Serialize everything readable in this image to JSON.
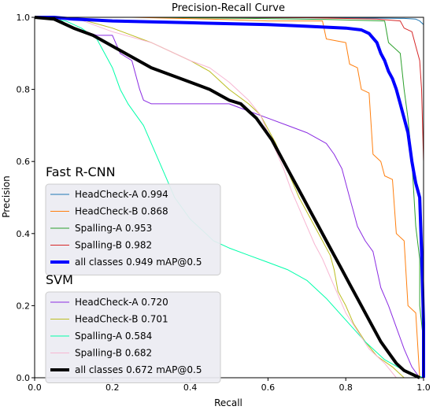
{
  "chart_data": {
    "type": "line",
    "title": "Precision-Recall Curve",
    "xlabel": "Recall",
    "ylabel": "Precision",
    "xlim": [
      0.0,
      1.0
    ],
    "ylim": [
      0.0,
      1.0
    ],
    "xticks": [
      "0.0",
      "0.2",
      "0.4",
      "0.6",
      "0.8",
      "1.0"
    ],
    "yticks": [
      "0.0",
      "0.2",
      "0.4",
      "0.6",
      "0.8",
      "1.0"
    ],
    "grid": false,
    "legend_groups": [
      {
        "title": "Fast R-CNN",
        "placement": "middle-left",
        "series": [
          {
            "name": "HeadCheck-A 0.994",
            "color": "#1f77b4",
            "width": 1,
            "points": [
              [
                0,
                1
              ],
              [
                0.3,
                1
              ],
              [
                0.6,
                0.999
              ],
              [
                0.85,
                0.998
              ],
              [
                0.95,
                0.997
              ],
              [
                0.98,
                0.995
              ],
              [
                0.99,
                0.99
              ],
              [
                1.0,
                0.98
              ],
              [
                1.0,
                0.0
              ]
            ]
          },
          {
            "name": "HeadCheck-B 0.868",
            "color": "#ff7f0e",
            "width": 1,
            "points": [
              [
                0,
                1
              ],
              [
                0.25,
                1
              ],
              [
                0.45,
                0.995
              ],
              [
                0.6,
                0.99
              ],
              [
                0.74,
                0.99
              ],
              [
                0.75,
                0.94
              ],
              [
                0.8,
                0.93
              ],
              [
                0.81,
                0.87
              ],
              [
                0.83,
                0.86
              ],
              [
                0.84,
                0.8
              ],
              [
                0.86,
                0.79
              ],
              [
                0.87,
                0.62
              ],
              [
                0.89,
                0.6
              ],
              [
                0.9,
                0.56
              ],
              [
                0.92,
                0.55
              ],
              [
                0.93,
                0.4
              ],
              [
                0.95,
                0.38
              ],
              [
                0.96,
                0.2
              ],
              [
                0.98,
                0.18
              ],
              [
                0.99,
                0.0
              ]
            ]
          },
          {
            "name": "Spalling-A 0.953",
            "color": "#2ca02c",
            "width": 1,
            "points": [
              [
                0,
                1
              ],
              [
                0.3,
                1
              ],
              [
                0.55,
                0.997
              ],
              [
                0.75,
                0.994
              ],
              [
                0.9,
                0.99
              ],
              [
                0.91,
                0.93
              ],
              [
                0.94,
                0.9
              ],
              [
                0.95,
                0.8
              ],
              [
                0.96,
                0.72
              ],
              [
                0.97,
                0.6
              ],
              [
                0.98,
                0.42
              ],
              [
                0.99,
                0.33
              ],
              [
                0.99,
                0.2
              ],
              [
                1.0,
                0.1
              ],
              [
                1.0,
                0.0
              ]
            ]
          },
          {
            "name": "Spalling-B 0.982",
            "color": "#d62728",
            "width": 1,
            "points": [
              [
                0,
                1
              ],
              [
                0.4,
                1
              ],
              [
                0.7,
                0.999
              ],
              [
                0.88,
                0.995
              ],
              [
                0.94,
                0.99
              ],
              [
                0.95,
                0.97
              ],
              [
                0.97,
                0.96
              ],
              [
                0.98,
                0.92
              ],
              [
                0.99,
                0.88
              ],
              [
                0.995,
                0.8
              ],
              [
                1.0,
                0.6
              ],
              [
                1.0,
                0.0
              ]
            ]
          },
          {
            "name": "all classes 0.949 mAP@0.5",
            "color": "#0000ff",
            "width": 4,
            "points": [
              [
                0,
                1
              ],
              [
                0.05,
                1
              ],
              [
                0.1,
                0.995
              ],
              [
                0.2,
                0.99
              ],
              [
                0.4,
                0.985
              ],
              [
                0.6,
                0.98
              ],
              [
                0.7,
                0.975
              ],
              [
                0.8,
                0.97
              ],
              [
                0.84,
                0.965
              ],
              [
                0.86,
                0.955
              ],
              [
                0.88,
                0.93
              ],
              [
                0.89,
                0.9
              ],
              [
                0.9,
                0.88
              ],
              [
                0.91,
                0.85
              ],
              [
                0.92,
                0.83
              ],
              [
                0.93,
                0.8
              ],
              [
                0.94,
                0.76
              ],
              [
                0.95,
                0.72
              ],
              [
                0.96,
                0.68
              ],
              [
                0.965,
                0.64
              ],
              [
                0.97,
                0.6
              ],
              [
                0.975,
                0.57
              ],
              [
                0.98,
                0.54
              ],
              [
                0.985,
                0.52
              ],
              [
                0.99,
                0.5
              ],
              [
                0.995,
                0.35
              ],
              [
                1.0,
                0.15
              ],
              [
                1.0,
                0.0
              ]
            ]
          }
        ]
      },
      {
        "title": "SVM",
        "placement": "lower-left",
        "series": [
          {
            "name": "HeadCheck-A 0.720",
            "color": "#8a2be2",
            "width": 1,
            "points": [
              [
                0,
                1
              ],
              [
                0.06,
                1
              ],
              [
                0.08,
                0.98
              ],
              [
                0.1,
                0.97
              ],
              [
                0.16,
                0.95
              ],
              [
                0.2,
                0.95
              ],
              [
                0.22,
                0.9
              ],
              [
                0.25,
                0.88
              ],
              [
                0.27,
                0.8
              ],
              [
                0.28,
                0.77
              ],
              [
                0.3,
                0.76
              ],
              [
                0.5,
                0.76
              ],
              [
                0.55,
                0.74
              ],
              [
                0.6,
                0.72
              ],
              [
                0.65,
                0.7
              ],
              [
                0.7,
                0.68
              ],
              [
                0.75,
                0.65
              ],
              [
                0.77,
                0.62
              ],
              [
                0.79,
                0.58
              ],
              [
                0.8,
                0.54
              ],
              [
                0.81,
                0.5
              ],
              [
                0.82,
                0.46
              ],
              [
                0.83,
                0.42
              ],
              [
                0.85,
                0.38
              ],
              [
                0.87,
                0.35
              ],
              [
                0.88,
                0.3
              ],
              [
                0.89,
                0.25
              ],
              [
                0.91,
                0.2
              ],
              [
                0.93,
                0.14
              ],
              [
                0.95,
                0.08
              ],
              [
                0.97,
                0.03
              ],
              [
                0.99,
                0.0
              ]
            ]
          },
          {
            "name": "HeadCheck-B 0.701",
            "color": "#bcbd22",
            "width": 1,
            "points": [
              [
                0,
                1
              ],
              [
                0.1,
                1
              ],
              [
                0.2,
                0.97
              ],
              [
                0.3,
                0.93
              ],
              [
                0.4,
                0.88
              ],
              [
                0.45,
                0.85
              ],
              [
                0.5,
                0.8
              ],
              [
                0.55,
                0.76
              ],
              [
                0.58,
                0.73
              ],
              [
                0.6,
                0.69
              ],
              [
                0.62,
                0.65
              ],
              [
                0.64,
                0.6
              ],
              [
                0.66,
                0.55
              ],
              [
                0.68,
                0.5
              ],
              [
                0.7,
                0.46
              ],
              [
                0.72,
                0.42
              ],
              [
                0.74,
                0.38
              ],
              [
                0.76,
                0.34
              ],
              [
                0.77,
                0.3
              ],
              [
                0.78,
                0.24
              ],
              [
                0.8,
                0.2
              ],
              [
                0.82,
                0.15
              ],
              [
                0.85,
                0.1
              ],
              [
                0.88,
                0.06
              ],
              [
                0.92,
                0.03
              ],
              [
                0.95,
                0.0
              ]
            ]
          },
          {
            "name": "Spalling-A 0.584",
            "color": "#00ffaa",
            "width": 1,
            "points": [
              [
                0,
                1
              ],
              [
                0.08,
                0.99
              ],
              [
                0.12,
                0.97
              ],
              [
                0.16,
                0.94
              ],
              [
                0.18,
                0.9
              ],
              [
                0.2,
                0.86
              ],
              [
                0.22,
                0.8
              ],
              [
                0.24,
                0.76
              ],
              [
                0.26,
                0.73
              ],
              [
                0.28,
                0.7
              ],
              [
                0.3,
                0.65
              ],
              [
                0.32,
                0.6
              ],
              [
                0.34,
                0.55
              ],
              [
                0.36,
                0.5
              ],
              [
                0.38,
                0.47
              ],
              [
                0.4,
                0.44
              ],
              [
                0.42,
                0.42
              ],
              [
                0.44,
                0.4
              ],
              [
                0.46,
                0.38
              ],
              [
                0.5,
                0.36
              ],
              [
                0.55,
                0.34
              ],
              [
                0.6,
                0.32
              ],
              [
                0.65,
                0.3
              ],
              [
                0.7,
                0.27
              ],
              [
                0.75,
                0.22
              ],
              [
                0.8,
                0.16
              ],
              [
                0.85,
                0.1
              ],
              [
                0.9,
                0.05
              ],
              [
                0.95,
                0.02
              ],
              [
                1.0,
                0.0
              ]
            ]
          },
          {
            "name": "Spalling-B 0.682",
            "color": "#f7b6d2",
            "width": 1,
            "points": [
              [
                0,
                1
              ],
              [
                0.1,
                1
              ],
              [
                0.15,
                0.98
              ],
              [
                0.2,
                0.96
              ],
              [
                0.3,
                0.93
              ],
              [
                0.4,
                0.88
              ],
              [
                0.45,
                0.86
              ],
              [
                0.5,
                0.82
              ],
              [
                0.55,
                0.77
              ],
              [
                0.58,
                0.73
              ],
              [
                0.6,
                0.68
              ],
              [
                0.62,
                0.63
              ],
              [
                0.64,
                0.58
              ],
              [
                0.66,
                0.52
              ],
              [
                0.68,
                0.47
              ],
              [
                0.7,
                0.42
              ],
              [
                0.72,
                0.37
              ],
              [
                0.74,
                0.33
              ],
              [
                0.76,
                0.28
              ],
              [
                0.78,
                0.23
              ],
              [
                0.8,
                0.18
              ],
              [
                0.83,
                0.13
              ],
              [
                0.86,
                0.08
              ],
              [
                0.9,
                0.04
              ],
              [
                0.93,
                0.0
              ]
            ]
          },
          {
            "name": "all classes 0.672 mAP@0.5",
            "color": "#000000",
            "width": 4,
            "points": [
              [
                0,
                1
              ],
              [
                0.05,
                0.995
              ],
              [
                0.1,
                0.97
              ],
              [
                0.15,
                0.95
              ],
              [
                0.2,
                0.92
              ],
              [
                0.25,
                0.89
              ],
              [
                0.3,
                0.86
              ],
              [
                0.35,
                0.84
              ],
              [
                0.4,
                0.82
              ],
              [
                0.45,
                0.8
              ],
              [
                0.5,
                0.77
              ],
              [
                0.53,
                0.76
              ],
              [
                0.55,
                0.74
              ],
              [
                0.57,
                0.72
              ],
              [
                0.59,
                0.69
              ],
              [
                0.61,
                0.66
              ],
              [
                0.63,
                0.62
              ],
              [
                0.65,
                0.58
              ],
              [
                0.67,
                0.54
              ],
              [
                0.69,
                0.5
              ],
              [
                0.71,
                0.46
              ],
              [
                0.73,
                0.42
              ],
              [
                0.75,
                0.38
              ],
              [
                0.77,
                0.34
              ],
              [
                0.79,
                0.3
              ],
              [
                0.81,
                0.26
              ],
              [
                0.83,
                0.22
              ],
              [
                0.85,
                0.18
              ],
              [
                0.87,
                0.14
              ],
              [
                0.89,
                0.1
              ],
              [
                0.91,
                0.07
              ],
              [
                0.93,
                0.04
              ],
              [
                0.95,
                0.02
              ],
              [
                0.97,
                0.01
              ],
              [
                0.99,
                0.0
              ]
            ]
          }
        ]
      }
    ]
  }
}
